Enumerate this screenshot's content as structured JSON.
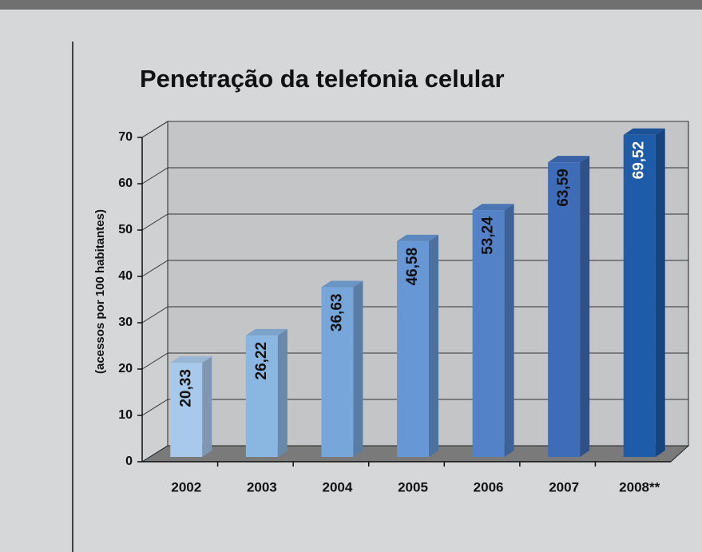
{
  "chart_data": {
    "type": "bar3d",
    "title": "Penetração da telefonia celular",
    "y_label": "(acessos por 100 habitantes)",
    "categories": [
      "2002",
      "2003",
      "2004",
      "2005",
      "2006",
      "2007",
      "2008**"
    ],
    "values": [
      20.33,
      26.22,
      36.63,
      46.58,
      53.24,
      63.59,
      69.52
    ],
    "value_labels": [
      "20,33",
      "26,22",
      "36,63",
      "46,58",
      "53,24",
      "63,59",
      "69,52"
    ],
    "colors": [
      "#a9c9ec",
      "#8ab6e2",
      "#76a6da",
      "#6797d4",
      "#5382c8",
      "#3f6cb8",
      "#1e5ba9"
    ],
    "ylim": [
      0,
      70
    ],
    "yticks": [
      0,
      10,
      20,
      30,
      40,
      50,
      60,
      70
    ],
    "grid": true
  }
}
